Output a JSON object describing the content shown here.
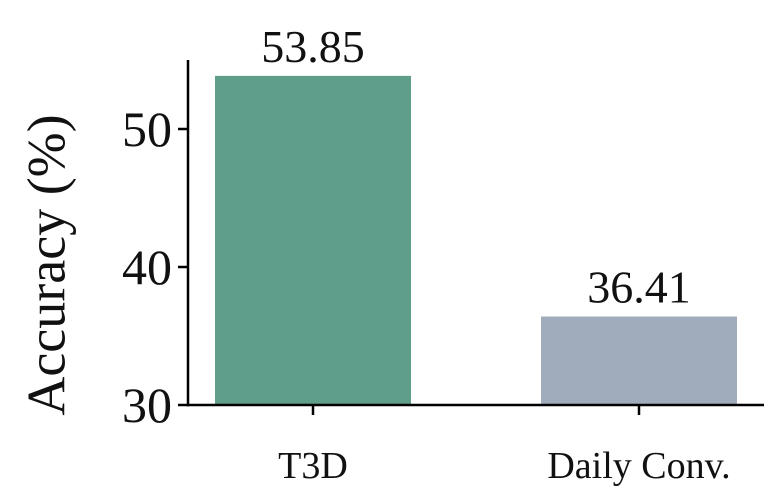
{
  "chart_data": {
    "type": "bar",
    "y_label": "Accuracy (%)",
    "categories": [
      "T3D",
      "Daily Conv."
    ],
    "values": [
      53.85,
      36.41
    ],
    "colors": [
      "#5f9e8a",
      "#a0abbb"
    ],
    "ylim": [
      30,
      55
    ],
    "yticks": [
      30,
      40,
      50
    ],
    "grid": false
  }
}
